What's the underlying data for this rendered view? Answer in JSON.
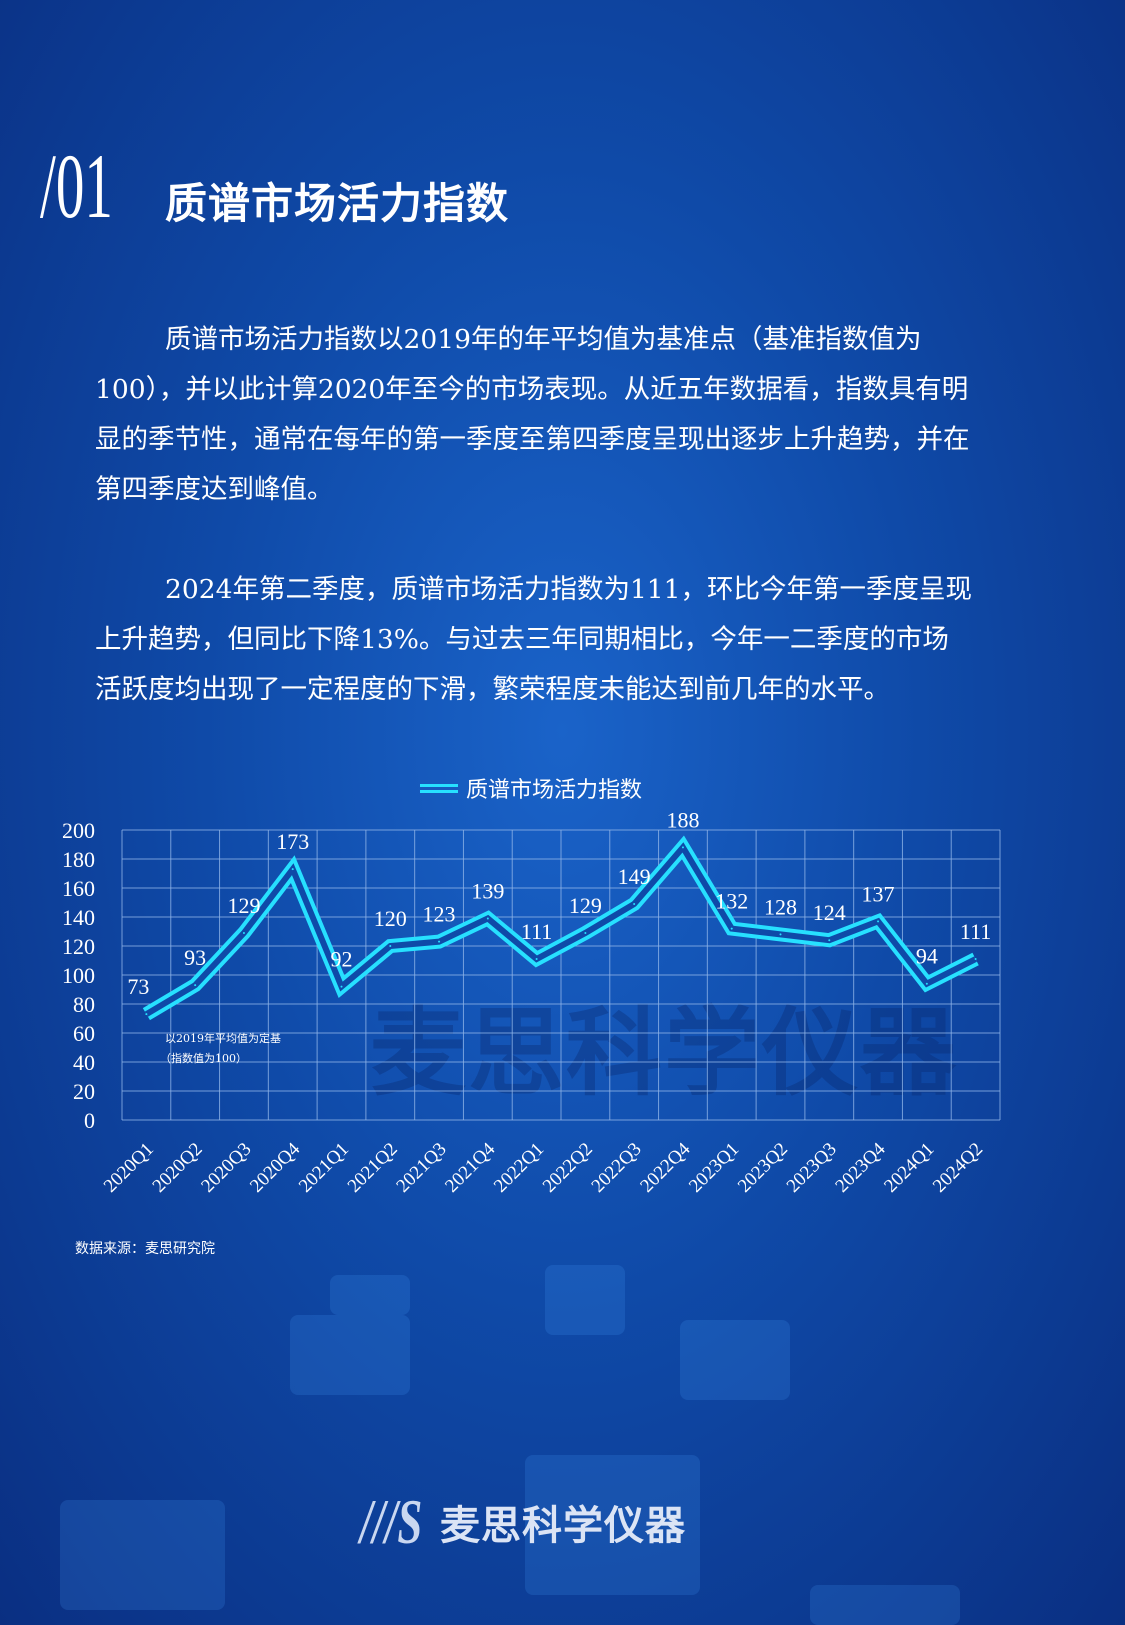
{
  "header": {
    "section_number": "/01",
    "title": "质谱市场活力指数"
  },
  "paragraphs": [
    "质谱市场活力指数以2019年的年平均值为基准点（基准指数值为100），并以此计算2020年至今的市场表现。从近五年数据看，指数具有明显的季节性，通常在每年的第一季度至第四季度呈现出逐步上升趋势，并在第四季度达到峰值。",
    "2024年第二季度，质谱市场活力指数为111，环比今年第一季度呈现上升趋势，但同比下降13%。与过去三年同期相比，今年一二季度的市场活跃度均出现了一定程度的下滑，繁荣程度未能达到前几年的水平。"
  ],
  "chart_data": {
    "type": "line",
    "categories": [
      "2020Q1",
      "2020Q2",
      "2020Q3",
      "2020Q4",
      "2021Q1",
      "2021Q2",
      "2021Q3",
      "2021Q4",
      "2022Q1",
      "2022Q2",
      "2022Q3",
      "2022Q4",
      "2023Q1",
      "2023Q2",
      "2023Q3",
      "2023Q4",
      "2024Q1",
      "2024Q2"
    ],
    "series": [
      {
        "name": "质谱市场活力指数",
        "values": [
          73,
          93,
          129,
          173,
          92,
          120,
          123,
          139,
          111,
          129,
          149,
          188,
          132,
          128,
          124,
          137,
          94,
          111
        ],
        "color": "#27e0ff"
      }
    ],
    "ylim": [
      0,
      200
    ],
    "yticks": [
      0,
      20,
      40,
      60,
      80,
      100,
      120,
      140,
      160,
      180,
      200
    ],
    "grid": true,
    "legend": "top-center",
    "annotation": [
      "以2019年平均值为定基",
      "（指数值为100）"
    ]
  },
  "watermark": "麦思科学仪器",
  "source": "数据来源：麦思研究院",
  "footer": {
    "logo_mark": "MS",
    "brand": "麦思科学仪器"
  },
  "colors": {
    "background": "#0f4aa8",
    "line": "#27e0ff",
    "grid": "#8fb4e8"
  }
}
